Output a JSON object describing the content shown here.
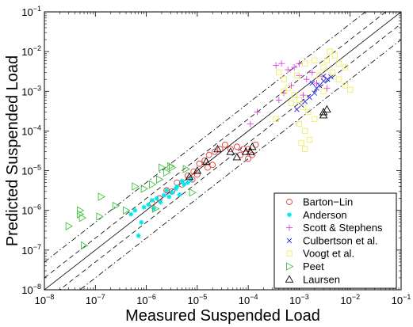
{
  "chart_data": {
    "type": "scatter",
    "title": "",
    "xlabel": "Measured Suspended Load",
    "ylabel": "Predicted Suspended Load",
    "x_scale": "log",
    "y_scale": "log",
    "xlim": [
      1e-08,
      0.1
    ],
    "ylim": [
      1e-08,
      0.1
    ],
    "x_ticks": [
      {
        "value": 1e-08,
        "base": "10",
        "exp": "−8"
      },
      {
        "value": 1e-07,
        "base": "10",
        "exp": "−7"
      },
      {
        "value": 1e-06,
        "base": "10",
        "exp": "−6"
      },
      {
        "value": 1e-05,
        "base": "10",
        "exp": "−5"
      },
      {
        "value": 0.0001,
        "base": "10",
        "exp": "−4"
      },
      {
        "value": 0.001,
        "base": "10",
        "exp": "−3"
      },
      {
        "value": 0.01,
        "base": "10",
        "exp": "−2"
      },
      {
        "value": 0.1,
        "base": "10",
        "exp": "−1"
      }
    ],
    "y_ticks": [
      {
        "value": 1e-08,
        "base": "10",
        "exp": "−8"
      },
      {
        "value": 1e-07,
        "base": "10",
        "exp": "−7"
      },
      {
        "value": 1e-06,
        "base": "10",
        "exp": "−6"
      },
      {
        "value": 1e-05,
        "base": "10",
        "exp": "−5"
      },
      {
        "value": 0.0001,
        "base": "10",
        "exp": "−4"
      },
      {
        "value": 0.001,
        "base": "10",
        "exp": "−3"
      },
      {
        "value": 0.01,
        "base": "10",
        "exp": "−2"
      },
      {
        "value": 0.1,
        "base": "10",
        "exp": "−1"
      }
    ],
    "grid": false,
    "legend_position": "bottom-right",
    "reference_lines": [
      {
        "kind": "equality",
        "factor": 1,
        "style": "solid"
      },
      {
        "kind": "factor",
        "factor": 2,
        "style": "dashed"
      },
      {
        "kind": "factor",
        "factor": 0.5,
        "style": "dashed"
      },
      {
        "kind": "factor",
        "factor": 5,
        "style": "dashdot"
      },
      {
        "kind": "factor",
        "factor": 0.2,
        "style": "dashdot"
      }
    ],
    "series": [
      {
        "name": "Barton−Lin",
        "marker": "circle",
        "color": "#e03c3c",
        "points": [
          [
            1.3e-06,
            1.5e-06
          ],
          [
            1.8e-06,
            2e-06
          ],
          [
            2.5e-06,
            3.2e-06
          ],
          [
            3.2e-06,
            3e-06
          ],
          [
            4e-06,
            5e-06
          ],
          [
            5e-06,
            4.5e-06
          ],
          [
            6.5e-06,
            7.5e-06
          ],
          [
            8.5e-06,
            9.5e-06
          ],
          [
            1.1e-05,
            1.5e-05
          ],
          [
            1.4e-05,
            1.8e-05
          ],
          [
            1.7e-05,
            2.5e-05
          ],
          [
            2.2e-05,
            3e-05
          ],
          [
            2.8e-05,
            3.5e-05
          ],
          [
            3.5e-05,
            4.5e-05
          ],
          [
            4.5e-05,
            3.5e-05
          ],
          [
            6e-05,
            4e-05
          ],
          [
            8e-05,
            3.5e-05
          ],
          [
            0.0001,
            3.5e-05
          ],
          [
            0.00012,
            2.5e-05
          ],
          [
            0.00014,
            4.5e-05
          ],
          [
            0.0001,
            2e-05
          ],
          [
            7e-05,
            2.5e-05
          ],
          [
            1.6e-05,
            1.2e-05
          ],
          [
            2e-05,
            1.4e-05
          ],
          [
            8e-06,
            6e-06
          ],
          [
            1e-05,
            8e-06
          ]
        ]
      },
      {
        "name": "Anderson",
        "marker": "star",
        "color": "#00e5ee",
        "points": [
          [
            7e-07,
            2.3e-07
          ],
          [
            8e-07,
            5e-07
          ],
          [
            9e-07,
            1.2e-06
          ],
          [
            1.1e-06,
            1.4e-06
          ],
          [
            1.3e-06,
            1.8e-06
          ],
          [
            1.6e-06,
            2e-06
          ],
          [
            1.9e-06,
            1.6e-06
          ],
          [
            2.2e-06,
            2.4e-06
          ],
          [
            2.8e-06,
            2.2e-06
          ],
          [
            3.2e-06,
            2.8e-06
          ],
          [
            3.8e-06,
            3.5e-06
          ],
          [
            4.5e-06,
            2.5e-06
          ],
          [
            5.5e-06,
            4.5e-06
          ],
          [
            6.5e-06,
            5e-06
          ],
          [
            7.5e-06,
            6e-06
          ],
          [
            5e-06,
            5.5e-06
          ],
          [
            4e-06,
            4e-06
          ],
          [
            6e-07,
            1e-06
          ],
          [
            5e-07,
            8e-07
          ],
          [
            1.4e-06,
            1.1e-06
          ],
          [
            2.5e-06,
            3.2e-06
          ]
        ]
      },
      {
        "name": "Scott & Stephens",
        "marker": "plus",
        "color": "#e040e0",
        "points": [
          [
            0.00035,
            0.0045
          ],
          [
            0.00045,
            0.005
          ],
          [
            0.0006,
            0.0035
          ],
          [
            0.0008,
            0.004
          ],
          [
            0.001,
            0.0025
          ],
          [
            0.0014,
            0.002
          ],
          [
            0.0018,
            0.003
          ],
          [
            0.0022,
            0.0016
          ],
          [
            0.0028,
            0.0024
          ],
          [
            0.0035,
            0.0012
          ],
          [
            0.0007,
            0.0014
          ],
          [
            0.0005,
            0.0009
          ],
          [
            0.0004,
            0.0006
          ],
          [
            0.0012,
            0.0008
          ],
          [
            0.00015,
            0.0003
          ],
          [
            0.00011,
            0.00015
          ],
          [
            0.001,
            0.005
          ]
        ]
      },
      {
        "name": "Culbertson et al.",
        "marker": "x",
        "color": "#2020ee",
        "points": [
          [
            0.0009,
            0.00035
          ],
          [
            0.0011,
            0.00045
          ],
          [
            0.0013,
            0.00055
          ],
          [
            0.0016,
            0.0007
          ],
          [
            0.002,
            0.0009
          ],
          [
            0.0025,
            0.0014
          ],
          [
            0.003,
            0.0018
          ],
          [
            0.0036,
            0.002
          ],
          [
            0.0042,
            0.0023
          ],
          [
            0.0022,
            0.0012
          ],
          [
            0.0018,
            0.0016
          ],
          [
            0.003,
            0.0024
          ]
        ]
      },
      {
        "name": "Voogt et al.",
        "marker": "square",
        "color": "#eeee60",
        "points": [
          [
            0.0004,
            0.003
          ],
          [
            0.0005,
            0.002
          ],
          [
            0.0006,
            0.0012
          ],
          [
            0.0008,
            0.0008
          ],
          [
            0.001,
            0.0006
          ],
          [
            0.0012,
            0.0004
          ],
          [
            0.0015,
            0.0003
          ],
          [
            0.002,
            0.0002
          ],
          [
            0.0025,
            0.0025
          ],
          [
            0.003,
            0.004
          ],
          [
            0.0035,
            0.006
          ],
          [
            0.0045,
            0.003
          ],
          [
            0.006,
            0.002
          ],
          [
            0.008,
            0.0014
          ],
          [
            0.01,
            0.0011
          ],
          [
            0.005,
            0.008
          ],
          [
            0.004,
            0.01
          ],
          [
            0.006,
            0.005
          ],
          [
            0.0013,
            0.005
          ],
          [
            0.0009,
            0.0025
          ],
          [
            0.0007,
            0.0005
          ],
          [
            0.001,
            0.00015
          ],
          [
            0.0013,
            0.0001
          ],
          [
            0.0016,
            6e-05
          ],
          [
            0.0013,
            3.5e-05
          ],
          [
            0.0011,
            5e-05
          ],
          [
            0.003,
            0.001
          ],
          [
            0.002,
            0.006
          ],
          [
            0.008,
            0.004
          ],
          [
            0.0005,
            0.001
          ],
          [
            0.00035,
            0.0002
          ]
        ]
      },
      {
        "name": "Peet",
        "marker": "triangle-right",
        "color": "#40c040",
        "points": [
          [
            3e-08,
            4e-07
          ],
          [
            5e-08,
            1e-06
          ],
          [
            5e-08,
            8e-07
          ],
          [
            5.5e-08,
            6.5e-07
          ],
          [
            6e-08,
            1.3e-07
          ],
          [
            1.2e-07,
            7e-07
          ],
          [
            1.3e-07,
            2.2e-06
          ],
          [
            2.5e-07,
            1.3e-06
          ],
          [
            4e-07,
            1e-06
          ],
          [
            6e-07,
            4e-06
          ],
          [
            9e-07,
            3.5e-06
          ],
          [
            1.3e-06,
            4.5e-06
          ],
          [
            1.8e-06,
            6e-06
          ],
          [
            2.5e-06,
            9e-06
          ],
          [
            3.2e-06,
            1.2e-05
          ],
          [
            6e-06,
            1.1e-05
          ],
          [
            8e-06,
            2.8e-06
          ],
          [
            2e-06,
            1.2e-05
          ],
          [
            3e-06,
            1.3e-05
          ],
          [
            1.5e-06,
            1.1e-06
          ]
        ]
      },
      {
        "name": "Laursen",
        "marker": "triangle-up",
        "color": "#000000",
        "points": [
          [
            7e-06,
            7e-06
          ],
          [
            1e-05,
            1e-05
          ],
          [
            1.5e-05,
            1.7e-05
          ],
          [
            2.5e-05,
            3.5e-05
          ],
          [
            4.5e-05,
            3e-05
          ],
          [
            6e-05,
            2.2e-05
          ],
          [
            9e-05,
            3e-05
          ],
          [
            0.003,
            0.00025
          ],
          [
            0.0035,
            0.00035
          ],
          [
            0.003,
            0.0003
          ],
          [
            0.00012,
            4e-05
          ],
          [
            0.00011,
            3e-05
          ]
        ]
      }
    ]
  }
}
